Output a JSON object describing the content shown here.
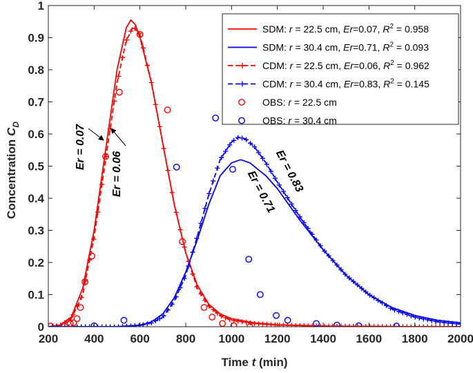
{
  "chart_data": {
    "type": "line",
    "title": "",
    "xlabel": {
      "prefix": "Time ",
      "var": "t",
      "suffix": " (min)"
    },
    "ylabel": {
      "prefix": "Concentration ",
      "var": "C",
      "sub": "D"
    },
    "xlim": [
      200,
      2000
    ],
    "ylim": [
      0,
      1
    ],
    "xticks": [
      200,
      400,
      600,
      800,
      1000,
      1200,
      1400,
      1600,
      1800,
      2000
    ],
    "yticks": [
      0,
      0.1,
      0.2,
      0.3,
      0.4,
      0.5,
      0.6,
      0.7,
      0.8,
      0.9,
      1
    ],
    "ytick_labels": [
      "0",
      "0.1",
      "0.2",
      "0.3",
      "0.4",
      "0.5",
      "0.6",
      "0.7",
      "0.8",
      "0.9",
      "1"
    ],
    "grid": false,
    "legend_position": "top-right",
    "colors": {
      "red": "#ff0000",
      "blue": "#0000ff",
      "axis": "#262626"
    },
    "series": [
      {
        "name": "SDM: r = 22.5 cm, Er=0.07, R2 = 0.958",
        "legend": {
          "model": "SDM:",
          "r": "22.5 cm",
          "er": "0.07",
          "r2": "0.958"
        },
        "style": "solid",
        "color": "#ff0000",
        "x": [
          200,
          250,
          300,
          350,
          400,
          450,
          500,
          540,
          560,
          580,
          600,
          650,
          700,
          750,
          800,
          850,
          900,
          950,
          1000,
          1100,
          1200,
          1400,
          1600,
          1800,
          2000
        ],
        "y": [
          0.0,
          0.005,
          0.03,
          0.12,
          0.3,
          0.55,
          0.8,
          0.93,
          0.955,
          0.94,
          0.9,
          0.76,
          0.57,
          0.38,
          0.23,
          0.13,
          0.07,
          0.04,
          0.025,
          0.012,
          0.006,
          0.002,
          0.001,
          0.0,
          0.0
        ]
      },
      {
        "name": "SDM: r = 30.4 cm, Er=0.71, R2 = 0.093",
        "legend": {
          "model": "SDM:",
          "r": "30.4 cm",
          "er": "0.71",
          "r2": "0.093"
        },
        "style": "solid",
        "color": "#0000ff",
        "x": [
          200,
          500,
          600,
          650,
          700,
          750,
          800,
          850,
          900,
          950,
          1000,
          1040,
          1080,
          1150,
          1200,
          1300,
          1400,
          1500,
          1600,
          1700,
          1800,
          1900,
          2000
        ],
        "y": [
          0,
          0.0,
          0.005,
          0.015,
          0.04,
          0.09,
          0.17,
          0.27,
          0.38,
          0.47,
          0.51,
          0.52,
          0.51,
          0.47,
          0.43,
          0.33,
          0.24,
          0.16,
          0.1,
          0.06,
          0.035,
          0.02,
          0.012
        ]
      },
      {
        "name": "CDM: r = 22.5 cm, Er=0.06, R2 = 0.962",
        "legend": {
          "model": "CDM:",
          "r": "22.5 cm",
          "er": "0.06",
          "r2": "0.962"
        },
        "style": "dashed-plus",
        "color": "#ff0000",
        "x": [
          200,
          250,
          300,
          350,
          400,
          450,
          500,
          540,
          570,
          600,
          650,
          700,
          750,
          800,
          850,
          900,
          950,
          1000,
          1100,
          1200,
          1400,
          1600,
          1800,
          2000
        ],
        "y": [
          0.0,
          0.004,
          0.025,
          0.1,
          0.28,
          0.52,
          0.76,
          0.89,
          0.935,
          0.91,
          0.76,
          0.57,
          0.38,
          0.23,
          0.12,
          0.065,
          0.035,
          0.02,
          0.01,
          0.005,
          0.002,
          0.001,
          0.0,
          0.0
        ]
      },
      {
        "name": "CDM: r = 30.4 cm, Er=0.83, R2 = 0.145",
        "legend": {
          "model": "CDM:",
          "r": "30.4 cm",
          "er": "0.83",
          "r2": "0.145"
        },
        "style": "dashed-plus",
        "color": "#0000ff",
        "x": [
          200,
          500,
          600,
          650,
          700,
          750,
          800,
          850,
          900,
          950,
          1000,
          1030,
          1060,
          1100,
          1150,
          1200,
          1300,
          1400,
          1500,
          1600,
          1700,
          1800,
          1900,
          2000
        ],
        "y": [
          0,
          0.0,
          0.004,
          0.012,
          0.03,
          0.08,
          0.16,
          0.28,
          0.41,
          0.52,
          0.575,
          0.59,
          0.585,
          0.56,
          0.51,
          0.45,
          0.34,
          0.24,
          0.16,
          0.1,
          0.055,
          0.03,
          0.015,
          0.008
        ]
      },
      {
        "name": "OBS: r = 22.5 cm",
        "legend": {
          "model": "OBS:",
          "r": "22.5 cm"
        },
        "style": "markers",
        "color": "#ff0000",
        "x": [
          210,
          270,
          295,
          310,
          325,
          340,
          360,
          390,
          450,
          510,
          600,
          720,
          785,
          880,
          915,
          960,
          1010,
          1080
        ],
        "y": [
          0.002,
          0.002,
          0.01,
          0.012,
          0.025,
          0.06,
          0.14,
          0.22,
          0.53,
          0.73,
          0.91,
          0.675,
          0.265,
          0.06,
          0.03,
          0.01,
          0.003,
          0.0
        ]
      },
      {
        "name": "OBS: r = 30.4 cm",
        "legend": {
          "model": "OBS:",
          "r": "30.4 cm"
        },
        "style": "markers",
        "color": "#0000ff",
        "x": [
          400,
          530,
          760,
          930,
          1005,
          1075,
          1125,
          1195,
          1245,
          1370,
          1460,
          1555,
          1720
        ],
        "y": [
          0.003,
          0.02,
          0.497,
          0.65,
          0.49,
          0.21,
          0.1,
          0.035,
          0.02,
          0.01,
          0.005,
          0.003,
          0.002
        ]
      }
    ],
    "annotations": [
      {
        "text": "Er = 0.07"
      },
      {
        "text": "Er = 0.06"
      },
      {
        "text": "Er = 0.83"
      },
      {
        "text": "Er = 0.71"
      }
    ]
  }
}
